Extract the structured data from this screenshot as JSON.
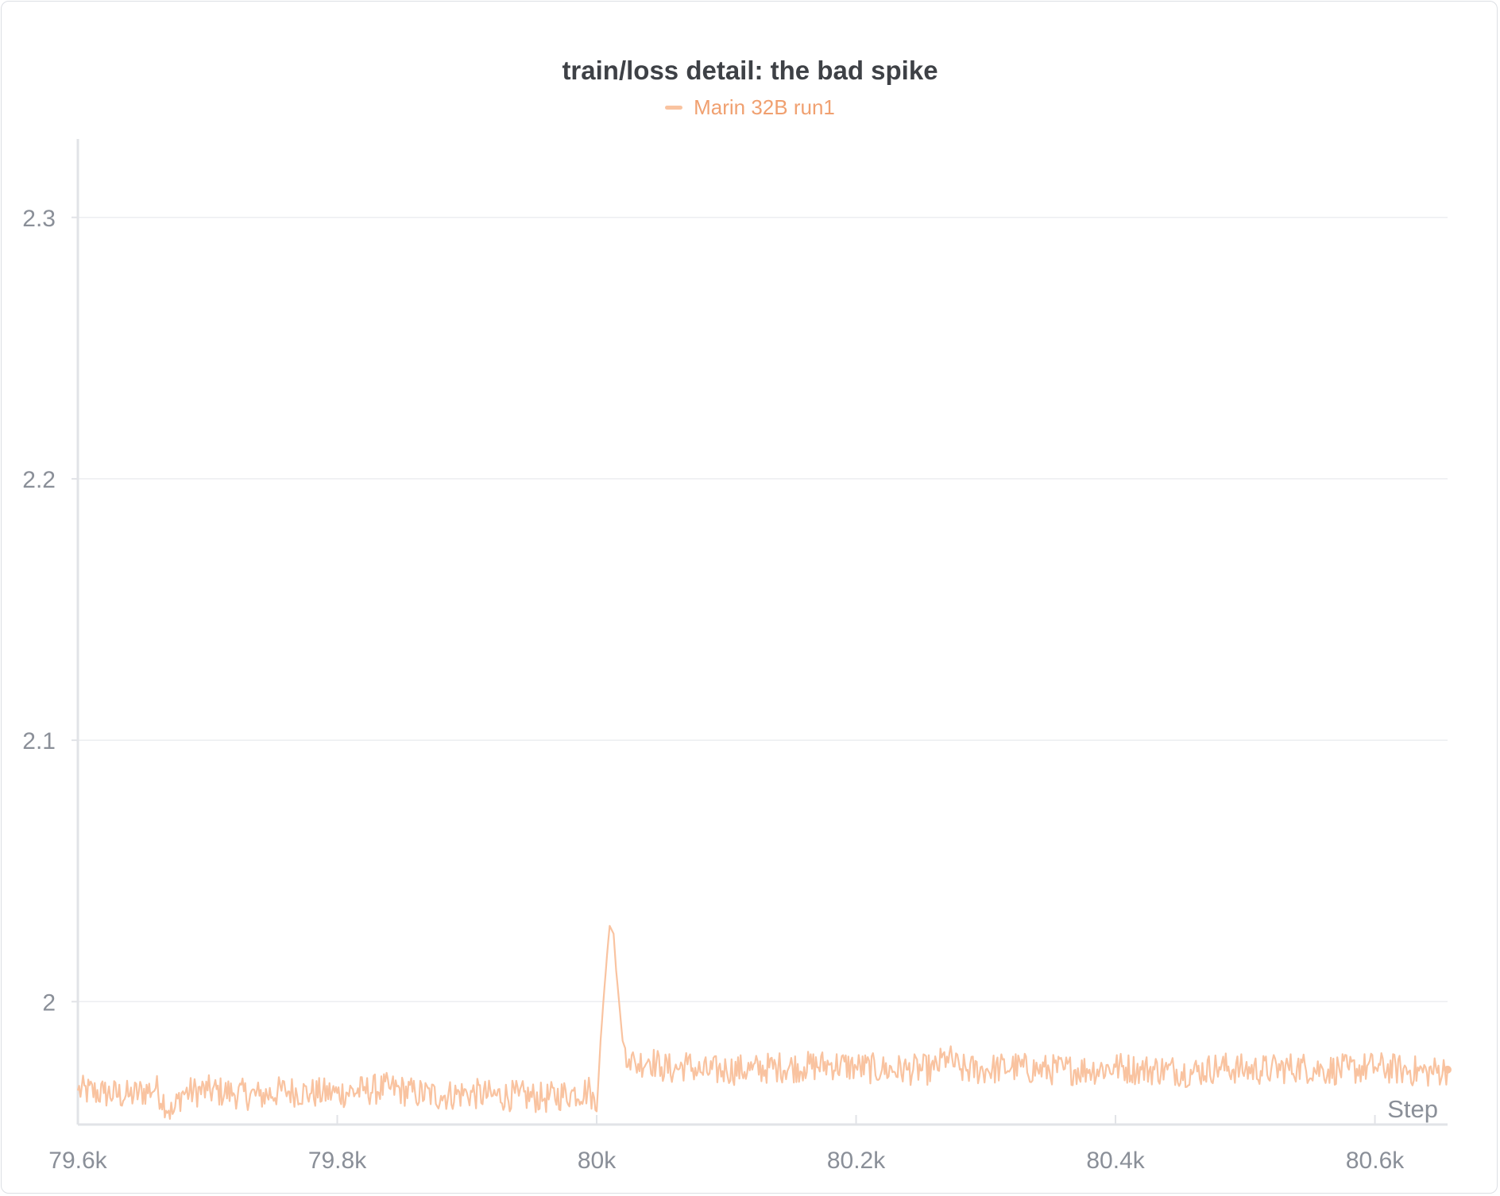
{
  "chart_data": {
    "type": "line",
    "title": "train/loss detail: the bad spike",
    "xlabel": "Step",
    "ylabel": "",
    "xlim": [
      79600,
      80656
    ],
    "ylim": [
      1.953,
      2.33
    ],
    "x_ticks": [
      79600,
      79800,
      80000,
      80200,
      80400,
      80600
    ],
    "x_tick_labels": [
      "79.6k",
      "79.8k",
      "80k",
      "80.2k",
      "80.4k",
      "80.6k"
    ],
    "y_ticks": [
      2.0,
      2.1,
      2.2,
      2.3
    ],
    "y_tick_labels": [
      "2",
      "2.1",
      "2.2",
      "2.3"
    ],
    "grid": true,
    "legend_position": "top-center",
    "series": [
      {
        "name": "Marin 32B run1",
        "color": "#f9c3a0",
        "x": [
          79600,
          79620,
          79640,
          79660,
          79673,
          79680,
          79700,
          79720,
          79740,
          79760,
          79780,
          79800,
          79820,
          79840,
          79860,
          79880,
          79900,
          79920,
          79940,
          79960,
          79980,
          79995,
          80000,
          80003,
          80005,
          80008,
          80010,
          80013,
          80015,
          80018,
          80020,
          80025,
          80030,
          80040,
          80050,
          80060,
          80070,
          80080,
          80100,
          80120,
          80140,
          80160,
          80180,
          80200,
          80220,
          80240,
          80260,
          80270,
          80280,
          80300,
          80320,
          80340,
          80360,
          80380,
          80400,
          80420,
          80440,
          80460,
          80480,
          80500,
          80520,
          80540,
          80560,
          80580,
          80600,
          80620,
          80640,
          80656
        ],
        "y": [
          1.966,
          1.965,
          1.964,
          1.967,
          1.957,
          1.965,
          1.966,
          1.965,
          1.964,
          1.966,
          1.965,
          1.965,
          1.966,
          1.967,
          1.965,
          1.964,
          1.965,
          1.964,
          1.964,
          1.963,
          1.965,
          1.966,
          1.958,
          1.985,
          1.999,
          2.018,
          2.029,
          2.026,
          2.012,
          1.996,
          1.985,
          1.978,
          1.976,
          1.978,
          1.975,
          1.974,
          1.976,
          1.973,
          1.974,
          1.974,
          1.975,
          1.975,
          1.976,
          1.975,
          1.974,
          1.974,
          1.974,
          1.979,
          1.974,
          1.974,
          1.975,
          1.974,
          1.974,
          1.974,
          1.975,
          1.974,
          1.974,
          1.973,
          1.975,
          1.974,
          1.974,
          1.975,
          1.974,
          1.974,
          1.975,
          1.974,
          1.973,
          1.974
        ]
      }
    ]
  }
}
